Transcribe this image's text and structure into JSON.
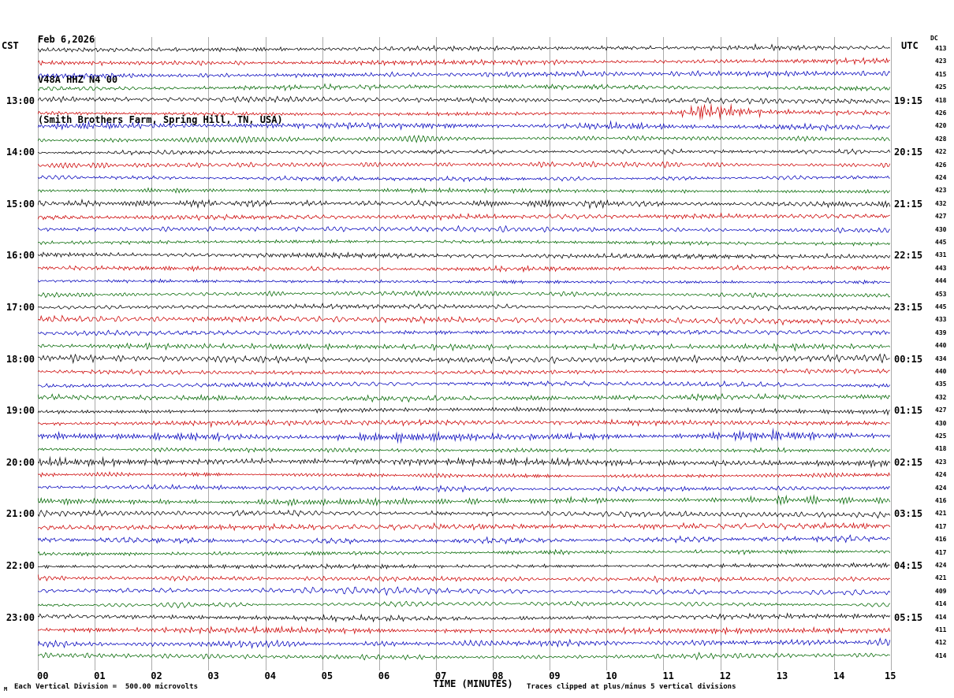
{
  "header": {
    "date": "Feb 6,2026",
    "station": "V48A HHZ N4 00",
    "location": "(Smith Brothers Farm, Spring Hill, TN, USA)"
  },
  "axes": {
    "left_title": "CST",
    "right_title": "UTC",
    "dc_title": "DC",
    "x_title": "TIME (MINUTES)",
    "x_ticks": [
      "00",
      "01",
      "02",
      "03",
      "04",
      "05",
      "06",
      "07",
      "08",
      "09",
      "10",
      "11",
      "12",
      "13",
      "14",
      "15"
    ]
  },
  "footer": {
    "scale_note": "Each Vertical Division =  500.00 microvolts",
    "clip_note": "Traces clipped at plus/minus 5 vertical divisions",
    "corner_mark": "M"
  },
  "chart_data": {
    "type": "line",
    "subtype": "helicorder-seismogram",
    "title": "V48A HHZ N4 00 (Smith Brothers Farm, Spring Hill, TN, USA)",
    "start_date": "Feb 6,2026",
    "minutes_per_row": 15,
    "x_range": [
      0,
      15
    ],
    "xlabel": "TIME (MINUTES)",
    "rows_count": 48,
    "grid": "vertical-minute-lines",
    "trace_colors": [
      "#000000",
      "#cc0000",
      "#0000bb",
      "#006600"
    ],
    "color_cycle": [
      "black",
      "red",
      "blue",
      "green"
    ],
    "clip_divisions": 5,
    "microvolts_per_division": 500.0,
    "dc_values": [
      413,
      423,
      415,
      425,
      418,
      426,
      420,
      428,
      422,
      426,
      424,
      423,
      432,
      427,
      430,
      445,
      431,
      443,
      444,
      453,
      445,
      433,
      439,
      440,
      434,
      440,
      435,
      432,
      427,
      430,
      425,
      418,
      423,
      424,
      424,
      416,
      421,
      417,
      416,
      417,
      424,
      421,
      409,
      414,
      414,
      411,
      412,
      414
    ],
    "hour_labels": [
      {
        "row": 4,
        "cst": "13:00",
        "utc": "19:15"
      },
      {
        "row": 8,
        "cst": "14:00",
        "utc": "20:15"
      },
      {
        "row": 12,
        "cst": "15:00",
        "utc": "21:15"
      },
      {
        "row": 16,
        "cst": "16:00",
        "utc": "22:15"
      },
      {
        "row": 20,
        "cst": "17:00",
        "utc": "23:15"
      },
      {
        "row": 24,
        "cst": "18:00",
        "utc": "00:15"
      },
      {
        "row": 28,
        "cst": "19:00",
        "utc": "01:15"
      },
      {
        "row": 32,
        "cst": "20:00",
        "utc": "02:15"
      },
      {
        "row": 36,
        "cst": "21:00",
        "utc": "03:15"
      },
      {
        "row": 40,
        "cst": "22:00",
        "utc": "04:15"
      },
      {
        "row": 44,
        "cst": "23:00",
        "utc": "05:15"
      }
    ],
    "events": [
      {
        "row": 5,
        "minute": 11.8,
        "description": "high-amplitude clipped burst on red trace"
      }
    ]
  }
}
